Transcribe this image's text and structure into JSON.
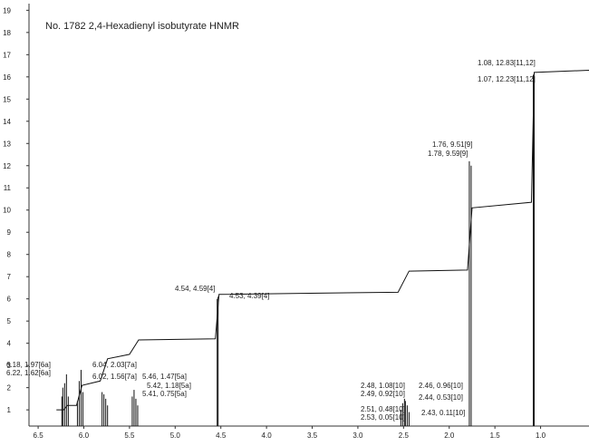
{
  "chart_data": {
    "type": "nmr",
    "title": "No. 1782 2,4-Hexadienyl isobutyrate HNMR",
    "xlim": [
      6.6,
      0.47
    ],
    "xticks": [
      {
        "value": 6.5,
        "label": "6.5"
      },
      {
        "value": 6,
        "label": "6.0"
      },
      {
        "value": 5.5,
        "label": "5.5"
      },
      {
        "value": 5,
        "label": "5.0"
      },
      {
        "value": 4.5,
        "label": "4.5"
      },
      {
        "value": 4,
        "label": "4.0"
      },
      {
        "value": 3.5,
        "label": "3.5"
      },
      {
        "value": 3,
        "label": "3.0"
      },
      {
        "value": 2.5,
        "label": "2.5"
      },
      {
        "value": 2,
        "label": "2.0"
      },
      {
        "value": 1.5,
        "label": "1.5"
      },
      {
        "value": 1,
        "label": "1.0"
      }
    ],
    "ylim": [
      0.27,
      19.3
    ],
    "yticks": [
      1,
      2,
      3,
      4,
      5,
      6,
      7,
      8,
      9,
      10,
      11,
      12,
      13,
      14,
      15,
      16,
      17,
      18,
      19
    ],
    "color": "#111111",
    "peaks": {
      "x": [
        6.24,
        6.23,
        6.21,
        6.19,
        6.17,
        6.07,
        6.05,
        6.03,
        6.01,
        5.8,
        5.78,
        5.76,
        5.74,
        5.47,
        5.45,
        5.43,
        5.41,
        4.54,
        4.53,
        2.53,
        2.51,
        2.49,
        2.48,
        2.46,
        2.44,
        1.78,
        1.76,
        1.08,
        1.07
      ],
      "values": [
        1.6,
        2.0,
        2.2,
        2.6,
        1.6,
        1.4,
        2.3,
        2.8,
        1.8,
        1.8,
        1.7,
        1.5,
        1.2,
        1.6,
        1.9,
        1.5,
        1.2,
        6.0,
        6.1,
        1.0,
        1.3,
        1.5,
        1.4,
        1.2,
        0.9,
        12.2,
        12.0,
        16.1,
        16.0
      ]
    },
    "integral": {
      "x": [
        6.3,
        6.22,
        6.18,
        6.08,
        6.02,
        5.82,
        5.74,
        5.5,
        5.4,
        4.56,
        4.52,
        2.56,
        2.44,
        1.8,
        1.75,
        1.1,
        1.07,
        0.47
      ],
      "values": [
        1.0,
        1.0,
        1.2,
        1.2,
        2.1,
        2.3,
        3.3,
        3.5,
        4.15,
        4.2,
        6.2,
        6.3,
        7.25,
        7.3,
        10.1,
        10.35,
        16.2,
        16.3
      ]
    },
    "annotations": [
      "1.08, 12.83[11,12]",
      "1.07, 12.23[11,12]",
      "1.76, 9.51[9]",
      "1.78, 9.59[9]",
      "4.54, 4.59[4]",
      "4.53, 4.39[4]",
      "6.04, 2.03[7a]",
      "6.18, 1.97[6a]",
      "6.22, 1.62[6a]",
      "6.02, 1.56[7a]",
      "5.46, 1.47[5a]",
      "5.42, 1.18[5a]",
      "5.41, 0.75[5a]",
      "2.48, 1.08[10]",
      "2.49, 0.92[10]",
      "2.46, 0.96[10]",
      "2.44, 0.53[10]",
      "2.51, 0.48[10]",
      "2.53, 0.05[10]",
      "2.43, 0.11[10]"
    ]
  }
}
